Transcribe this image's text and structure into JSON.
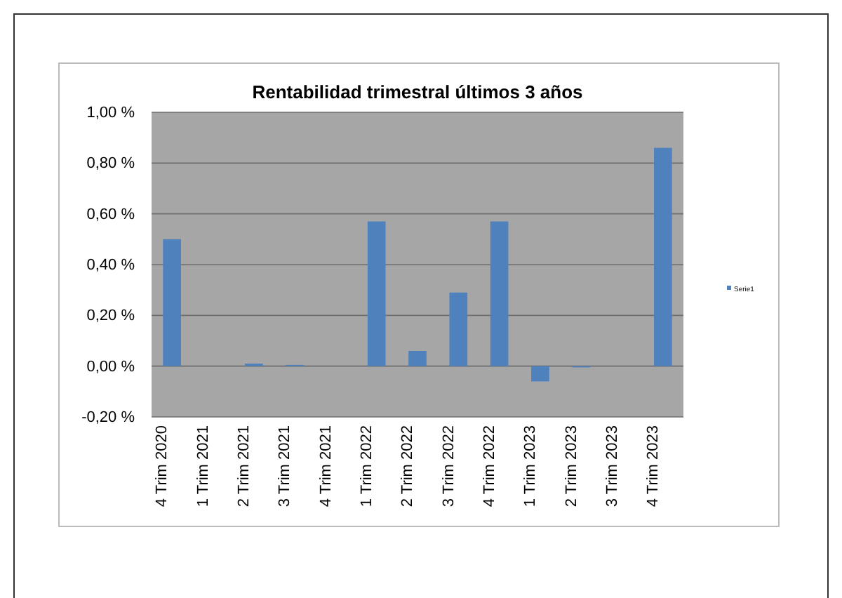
{
  "chart_data": {
    "type": "bar",
    "title": "Rentabilidad trimestral últimos 3 años",
    "categories": [
      "4 Trim 2020",
      "1 Trim 2021",
      "2 Trim 2021",
      "3 Trim 2021",
      "4 Trim 2021",
      "1 Trim 2022",
      "2 Trim 2022",
      "3 Trim 2022",
      "4 Trim 2022",
      "1 Trim 2023",
      "2 Trim 2023",
      "3 Trim 2023",
      "4 Trim 2023"
    ],
    "series": [
      {
        "name": "Serie1",
        "color": "#4f81bd",
        "values": [
          0.5,
          0,
          0.01,
          0.005,
          0,
          0.57,
          0.06,
          0.29,
          0.57,
          -0.06,
          -0.005,
          0,
          0.86
        ]
      }
    ],
    "ylim": [
      -0.2,
      1.0
    ],
    "yticks": [
      {
        "value": -0.2,
        "label": "-0,20 %"
      },
      {
        "value": 0,
        "label": "0,00 %"
      },
      {
        "value": 0.2,
        "label": "0,20 %"
      },
      {
        "value": 0.4,
        "label": "0,40 %"
      },
      {
        "value": 0.6,
        "label": "0,60 %"
      },
      {
        "value": 0.8,
        "label": "0,80 %"
      },
      {
        "value": 1.0,
        "label": "1,00 %"
      }
    ],
    "grid": "y",
    "legend": "right"
  }
}
